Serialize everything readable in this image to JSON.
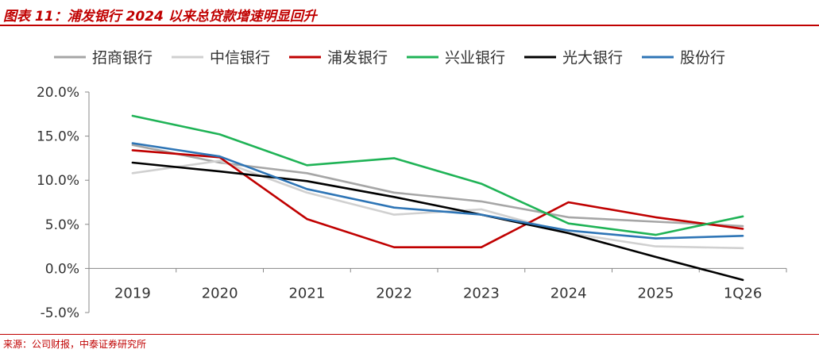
{
  "header": {
    "title": "图表 11：浦发银行 2024 以来总贷款增速明显回升"
  },
  "footer": {
    "source": "来源：公司财报，中泰证券研究所"
  },
  "chart_data": {
    "type": "line",
    "title": "图表 11：浦发银行 2024 以来总贷款增速明显回升",
    "xlabel": "",
    "ylabel": "",
    "categories": [
      "2019",
      "2020",
      "2021",
      "2022",
      "2023",
      "2024",
      "2025",
      "1Q26"
    ],
    "ylim": [
      -5,
      20
    ],
    "yticks": [
      20,
      15,
      10,
      5,
      0,
      -5
    ],
    "ytick_labels": [
      "20.0%",
      "15.0%",
      "10.0%",
      "5.0%",
      "0.0%",
      "-5.0%"
    ],
    "grid": false,
    "legend_position": "top",
    "series": [
      {
        "name": "招商银行",
        "color": "#a6a6a6",
        "values": [
          14.0,
          12.0,
          10.8,
          8.6,
          7.6,
          5.8,
          5.3,
          4.8
        ]
      },
      {
        "name": "中信银行",
        "color": "#d0d0d0",
        "values": [
          10.8,
          12.2,
          8.6,
          6.1,
          6.7,
          4.0,
          2.5,
          2.3
        ]
      },
      {
        "name": "浦发银行",
        "color": "#c00000",
        "values": [
          13.4,
          12.6,
          5.6,
          2.4,
          2.4,
          7.5,
          5.8,
          4.5
        ]
      },
      {
        "name": "兴业银行",
        "color": "#1fb356",
        "values": [
          17.3,
          15.2,
          11.7,
          12.5,
          9.6,
          5.1,
          3.8,
          5.9
        ]
      },
      {
        "name": "光大银行",
        "color": "#000000",
        "values": [
          12.0,
          11.0,
          9.9,
          8.1,
          6.1,
          4.0,
          1.3,
          -1.3
        ]
      },
      {
        "name": "股份行",
        "color": "#2e75b6",
        "values": [
          14.2,
          12.7,
          9.0,
          6.9,
          6.1,
          4.3,
          3.4,
          3.7
        ]
      }
    ]
  }
}
